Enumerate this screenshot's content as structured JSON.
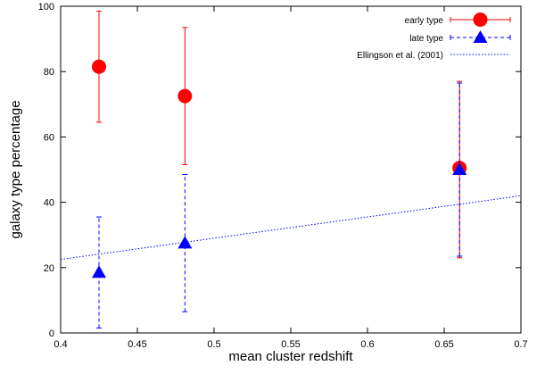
{
  "chart_data": {
    "type": "scatter",
    "title": "",
    "xlabel": "mean cluster redshift",
    "ylabel": "galaxy type percentage",
    "xlim": [
      0.4,
      0.7
    ],
    "ylim": [
      0,
      100
    ],
    "x_ticks": [
      "0.4",
      "0.45",
      "0.5",
      "0.55",
      "0.6",
      "0.65",
      "0.7"
    ],
    "y_ticks": [
      "0",
      "20",
      "40",
      "60",
      "80",
      "100"
    ],
    "grid": false,
    "legend_position": "top-right",
    "series": [
      {
        "name": "early type",
        "kind": "points-with-errorbars",
        "marker": "circle",
        "line_style": "solid",
        "color": "#ff0000",
        "points": [
          {
            "x": 0.425,
            "y": 81.5,
            "y_low": 64.5,
            "y_high": 98.5
          },
          {
            "x": 0.481,
            "y": 72.5,
            "y_low": 51.5,
            "y_high": 93.5
          },
          {
            "x": 0.66,
            "y": 50.5,
            "y_low": 23.0,
            "y_high": 77.0
          }
        ]
      },
      {
        "name": "late type",
        "kind": "points-with-errorbars",
        "marker": "triangle",
        "line_style": "dashed",
        "color": "#0000ff",
        "points": [
          {
            "x": 0.425,
            "y": 18.5,
            "y_low": 1.5,
            "y_high": 35.5
          },
          {
            "x": 0.481,
            "y": 27.5,
            "y_low": 6.5,
            "y_high": 48.5
          },
          {
            "x": 0.66,
            "y": 50.0,
            "y_low": 23.5,
            "y_high": 76.5
          }
        ]
      },
      {
        "name": "Ellingson et al. (2001)",
        "kind": "line",
        "line_style": "dotted",
        "color": "#0000ff",
        "points": [
          {
            "x": 0.4,
            "y": 22.5
          },
          {
            "x": 0.7,
            "y": 42.0
          }
        ]
      }
    ]
  }
}
